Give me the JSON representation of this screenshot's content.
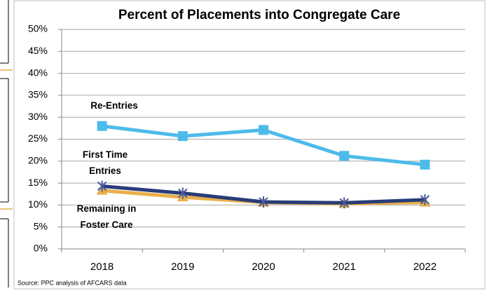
{
  "chart_data": {
    "type": "line",
    "title": "Percent of Placements into Congregate Care",
    "categories": [
      "2018",
      "2019",
      "2020",
      "2021",
      "2022"
    ],
    "series": [
      {
        "name": "Remaining in Foster Care",
        "color": "#e8b04a",
        "marker": "triangle",
        "values": [
          13.3,
          11.8,
          10.6,
          10.3,
          10.6
        ]
      },
      {
        "name": "First Time Entries",
        "color": "#283c78",
        "marker": "star",
        "values": [
          14.3,
          12.7,
          10.7,
          10.5,
          11.2
        ]
      },
      {
        "name": "Re-Entries",
        "color": "#4dbbea",
        "marker": "square",
        "values": [
          28.0,
          25.7,
          27.1,
          21.2,
          19.2
        ]
      }
    ],
    "ylim": [
      0,
      50
    ],
    "yticks": [
      {
        "value": 0,
        "label": "0%"
      },
      {
        "value": 5,
        "label": "5%"
      },
      {
        "value": 10,
        "label": "10%"
      },
      {
        "value": 15,
        "label": "15%"
      },
      {
        "value": 20,
        "label": "20%"
      },
      {
        "value": 25,
        "label": "25%"
      },
      {
        "value": 30,
        "label": "30%"
      },
      {
        "value": 35,
        "label": "35%"
      },
      {
        "value": 40,
        "label": "40%"
      },
      {
        "value": 45,
        "label": "45%"
      },
      {
        "value": 50,
        "label": "50%"
      }
    ],
    "grid": true,
    "source": "Source: PPC analysis of AFCARS data"
  }
}
